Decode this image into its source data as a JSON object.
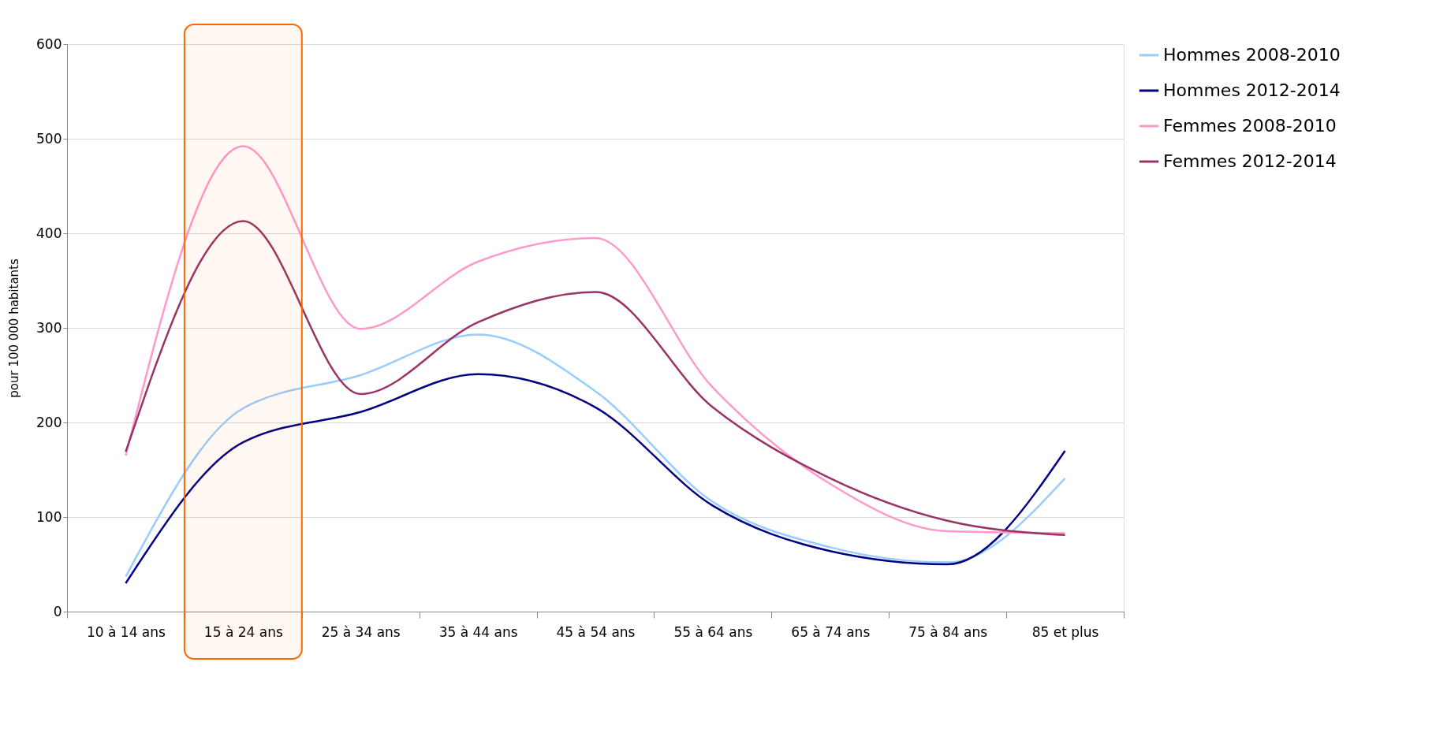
{
  "chart_data": {
    "type": "line",
    "ylabel": "pour 100 000 habitants",
    "categories": [
      "10 à 14 ans",
      "15 à 24 ans",
      "25 à 34 ans",
      "35 à 44 ans",
      "45 à 54 ans",
      "55 à 64 ans",
      "65 à 74 ans",
      "75 à 84 ans",
      "85 et plus"
    ],
    "series": [
      {
        "name": "Hommes 2008-2010",
        "color": "#99ccff",
        "values": [
          37,
          215,
          250,
          293,
          233,
          116,
          68,
          52,
          141
        ]
      },
      {
        "name": "Hommes 2012-2014",
        "color": "#000080",
        "values": [
          30,
          179,
          211,
          251,
          216,
          112,
          64,
          50,
          170
        ]
      },
      {
        "name": "Femmes 2008-2010",
        "color": "#ff99cc",
        "values": [
          165,
          492,
          299,
          370,
          395,
          237,
          135,
          85,
          83
        ]
      },
      {
        "name": "Femmes 2012-2014",
        "color": "#993366",
        "values": [
          169,
          413,
          230,
          306,
          338,
          216,
          141,
          96,
          81
        ]
      }
    ],
    "ylim": [
      0,
      600
    ],
    "yticks": [
      0,
      100,
      200,
      300,
      400,
      500,
      600
    ],
    "bands": [
      {
        "axis": "x",
        "from": "15 à 24 ans",
        "to": "15 à 24 ans",
        "color": "#ff6600"
      }
    ],
    "grid": "y",
    "legend": "right",
    "marker": "none",
    "line_style": "solid"
  }
}
